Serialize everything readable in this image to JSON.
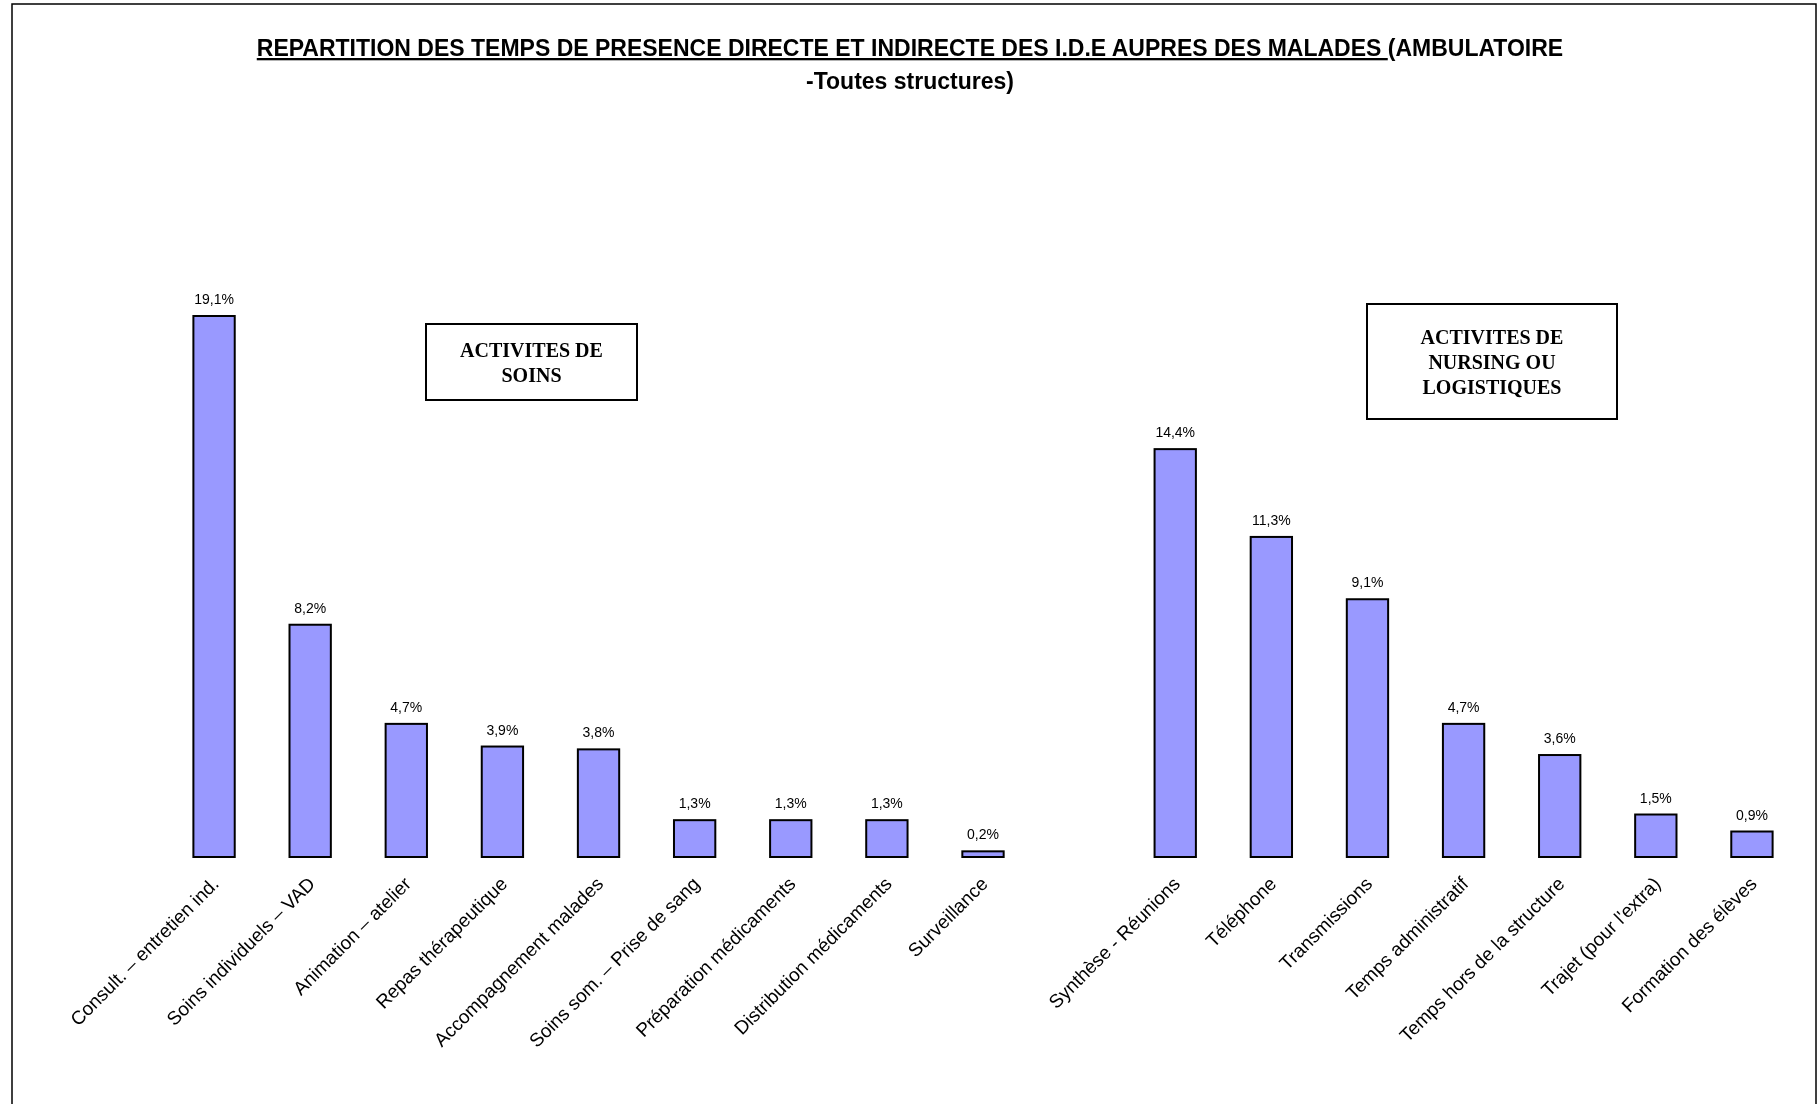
{
  "chart_data": {
    "type": "bar",
    "title": "REPARTITION DES TEMPS DE PRESENCE DIRECTE ET INDIRECTE DES I.D.E AUPRES DES MALADES (AMBULATOIRE -Toutes structures)",
    "categories": [
      "Consult. – entretien ind.",
      "Soins individuels – VAD",
      "Animation – atelier",
      "Repas thérapeutique",
      "Accompagnement malades",
      "Soins som. – Prise de sang",
      "Préparation médicaments",
      "Distribution médicaments",
      "Surveillance",
      null,
      "Synthèse  - Réunions",
      "Téléphone",
      "Transmissions",
      "Temps administratif",
      "Temps hors de la structure",
      "Trajet (pour l'extra)",
      "Formation des élèves"
    ],
    "values": [
      19.1,
      8.2,
      4.7,
      3.9,
      3.8,
      1.3,
      1.3,
      1.3,
      0.2,
      null,
      14.4,
      11.3,
      9.1,
      4.7,
      3.6,
      1.5,
      0.9
    ],
    "value_labels": [
      "19,1%",
      "8,2%",
      "4,7%",
      "3,9%",
      "3,8%",
      "1,3%",
      "1,3%",
      "1,3%",
      "0,2%",
      null,
      "14,4%",
      "11,3%",
      "9,1%",
      "4,7%",
      "3,6%",
      "1,5%",
      "0,9%"
    ],
    "color": "#9999ff",
    "annotations": [
      "ACTIVITES DE SOINS",
      "ACTIVITES DE NURSING OU LOGISTIQUES"
    ]
  }
}
